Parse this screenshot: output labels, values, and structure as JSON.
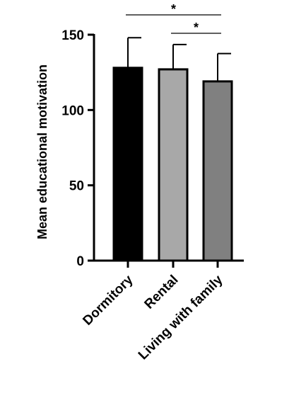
{
  "chart_data": {
    "type": "bar",
    "title": "",
    "xlabel": "",
    "ylabel": "Mean educational motivation",
    "categories": [
      "Dormitory",
      "Rental",
      "Living with family"
    ],
    "values": [
      128,
      127,
      119
    ],
    "error_upper": [
      20,
      16.5,
      18.5
    ],
    "bar_colors": [
      "#000000",
      "#a8a8a8",
      "#808080"
    ],
    "ylim": [
      0,
      150
    ],
    "yticks": [
      0,
      50,
      100,
      150
    ],
    "grid": false,
    "significance": [
      {
        "from": "Dormitory",
        "to": "Living with family",
        "label": "*"
      },
      {
        "from": "Rental",
        "to": "Living with family",
        "label": "*"
      }
    ]
  }
}
